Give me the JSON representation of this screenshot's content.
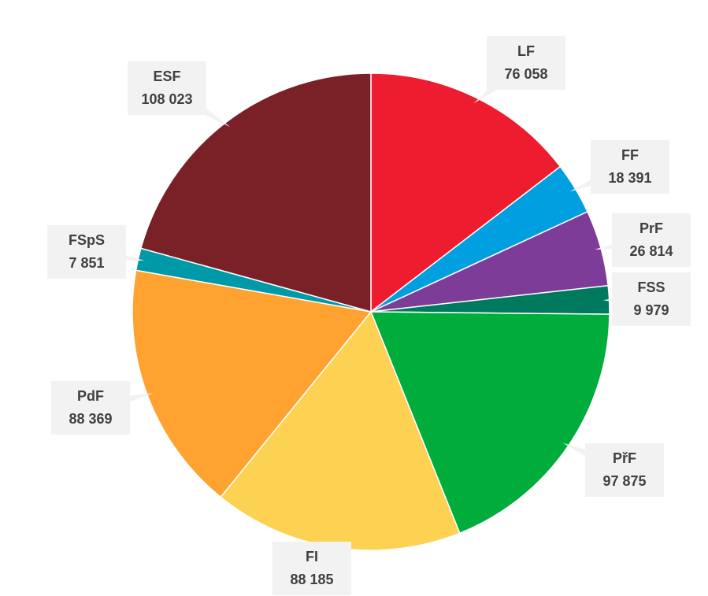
{
  "chart_data": {
    "type": "pie",
    "categories": [
      "LF",
      "FF",
      "PrF",
      "FSS",
      "PřF",
      "FI",
      "PdF",
      "FSpS",
      "ESF"
    ],
    "values": [
      76058,
      18391,
      26814,
      9979,
      97875,
      88185,
      88369,
      7851,
      108023
    ],
    "value_labels": [
      "76 058",
      "18 391",
      "26 814",
      "9 979",
      "97 875",
      "88 185",
      "88 369",
      "7 851",
      "108 023"
    ],
    "colors": [
      "#ed1c2e",
      "#00a0e0",
      "#7d3c98",
      "#007a5e",
      "#00ad3c",
      "#fdd152",
      "#ffa230",
      "#0099a8",
      "#7a2128"
    ]
  }
}
